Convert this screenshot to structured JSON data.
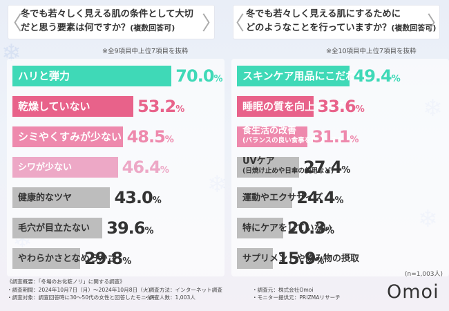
{
  "left": {
    "question_line1": "冬でも若々しく見える肌の条件として大切",
    "question_line2": "だと思う要素は何ですか？",
    "question_sub": "(複数回答可)",
    "note": "※全9項目中上位7項目を抜粋"
  },
  "right": {
    "question_line1": "冬でも若々しく見える肌にするために",
    "question_line2": "どのようなことを行っていますか？",
    "question_sub": "(複数回答可)",
    "note": "※全10項目中上位7項目を抜粋"
  },
  "chart_data": [
    {
      "type": "bar",
      "orientation": "horizontal",
      "unit": "%",
      "categories": [
        "ハリと弾力",
        "乾燥していない",
        "シミやくすみが少ない",
        "シワが少ない",
        "健康的なツヤ",
        "毛穴が目立たない",
        "やわらかさとなめらかさ"
      ],
      "values": [
        70.0,
        53.2,
        48.5,
        46.4,
        43.0,
        39.6,
        29.8
      ],
      "xlim": [
        0,
        100
      ],
      "colors": [
        "#3fd9b7",
        "#e8628a",
        "#ee89ad",
        "#eda8c6",
        "#bdbdbd",
        "#bdbdbd",
        "#bdbdbd"
      ]
    },
    {
      "type": "bar",
      "orientation": "horizontal",
      "unit": "%",
      "categories": [
        "スキンケア用品にこだわる",
        "睡眠の質を向上させる",
        "食生活の改善",
        "UVケア",
        "運動やエクササイズ",
        "特にケアをしていない",
        "サプリメントや飲み物の摂取"
      ],
      "subtitles": [
        "",
        "",
        "(バランスの良い食事を意識するなど)",
        "(日焼け止めや日傘の使用など)",
        "",
        "",
        ""
      ],
      "values": [
        49.4,
        33.6,
        31.1,
        27.4,
        24.4,
        20.3,
        15.9
      ],
      "xlim": [
        0,
        100
      ],
      "colors": [
        "#3fd9b7",
        "#e8628a",
        "#ee89ad",
        "#bdbdbd",
        "#bdbdbd",
        "#bdbdbd",
        "#bdbdbd"
      ]
    }
  ],
  "sample_size": "(n=1,003人)",
  "footer": {
    "overview": "《調査概要：「冬場のお化粧ノリ」に関する調査》",
    "period": "・調査期間：2024年10月7日（月）～2024年10月8日（火）",
    "method": "・調査方法：インターネット調査",
    "source": "・調査元：株式会社Omoi",
    "target": "・調査対象：調査回答時に30～50代の女性と回答したモニター",
    "count": "・調査人数：1,003人",
    "provider": "・モニター提供元：PRIZMAリサーチ"
  },
  "logo": "Omoi"
}
